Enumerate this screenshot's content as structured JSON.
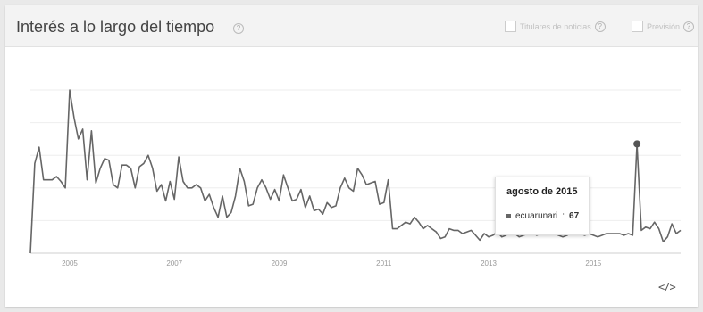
{
  "header": {
    "title": "Interés a lo largo del tiempo",
    "help_glyph": "?",
    "options": [
      {
        "label": "Titulares de noticias",
        "checked": false
      },
      {
        "label": "Previsión",
        "checked": false
      }
    ]
  },
  "tooltip": {
    "title": "agosto de 2015",
    "series_name": "ecuarunari",
    "value": "67"
  },
  "embed_icon": "</>",
  "colors": {
    "line": "#666666",
    "grid": "#eeeeee",
    "header_bg": "#f3f3f3",
    "page_bg": "#e9e9e9"
  },
  "chart_data": {
    "type": "line",
    "x_ticks": [
      "2005",
      "2007",
      "2009",
      "2011",
      "2013",
      "2015"
    ],
    "ylim": [
      0,
      100
    ],
    "grid": true,
    "highlight": {
      "index": 139,
      "label": "agosto de 2015",
      "value": 67
    },
    "series": [
      {
        "name": "ecuarunari",
        "values": [
          0,
          55,
          65,
          45,
          45,
          45,
          47,
          44,
          40,
          100,
          83,
          70,
          76,
          45,
          75,
          43,
          52,
          58,
          57,
          42,
          40,
          54,
          54,
          52,
          40,
          53,
          55,
          60,
          52,
          38,
          42,
          32,
          44,
          33,
          59,
          44,
          40,
          40,
          42,
          40,
          32,
          36,
          28,
          22,
          35,
          22,
          25,
          35,
          52,
          44,
          29,
          30,
          40,
          45,
          40,
          33,
          39,
          32,
          48,
          40,
          32,
          33,
          39,
          28,
          35,
          26,
          27,
          24,
          31,
          28,
          29,
          40,
          46,
          40,
          38,
          52,
          48,
          42,
          43,
          44,
          30,
          31,
          45,
          15,
          15,
          17,
          19,
          18,
          22,
          19,
          15,
          17,
          15,
          13,
          9,
          10,
          15,
          14,
          14,
          12,
          13,
          14,
          11,
          8,
          12,
          10,
          11,
          13,
          10,
          11,
          17,
          12,
          10,
          11,
          12,
          13,
          11,
          12,
          13,
          12,
          12,
          11,
          10,
          11,
          13,
          12,
          12,
          11,
          12,
          11,
          10,
          11,
          12,
          12,
          12,
          12,
          11,
          12,
          11,
          67,
          14,
          16,
          15,
          19,
          15,
          7,
          10,
          18,
          12,
          14
        ]
      }
    ]
  }
}
